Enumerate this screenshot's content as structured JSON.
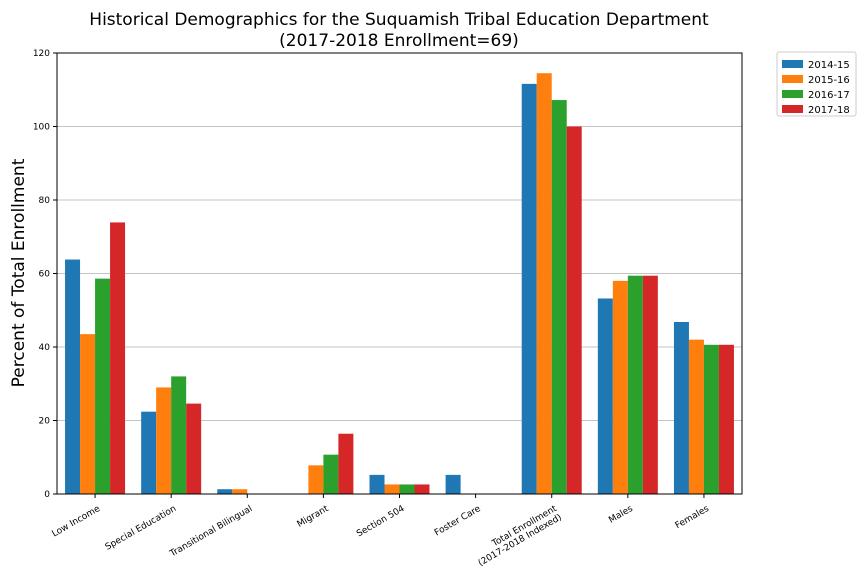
{
  "chart_data": {
    "type": "bar",
    "title": "Historical Demographics for the Suquamish Tribal Education Department",
    "subtitle": "(2017-2018 Enrollment=69)",
    "xlabel": "",
    "ylabel": "Percent of Total Enrollment",
    "ylim": [
      0,
      120
    ],
    "yticks": [
      "0",
      "20",
      "40",
      "60",
      "80",
      "100",
      "120"
    ],
    "grid": "horizontal",
    "legend_position": "outside-top-right",
    "categories": [
      [
        "Low Income"
      ],
      [
        "Special Education"
      ],
      [
        "Transitional Bilingual"
      ],
      [
        "Migrant"
      ],
      [
        "Section 504"
      ],
      [
        "Foster Care"
      ],
      [
        "Total Enrollment",
        "(2017-2018 Indexed)"
      ],
      [
        "Males"
      ],
      [
        "Females"
      ]
    ],
    "series": [
      {
        "name": "2014-15",
        "color": "#1f77b4",
        "values": [
          63.8,
          22.4,
          1.3,
          0,
          5.2,
          5.2,
          111.6,
          53.2,
          46.8
        ]
      },
      {
        "name": "2015-16",
        "color": "#ff7f0e",
        "values": [
          43.5,
          29.0,
          1.3,
          7.8,
          2.6,
          0,
          114.5,
          58.0,
          42.0
        ]
      },
      {
        "name": "2016-17",
        "color": "#2ca02c",
        "values": [
          58.6,
          32.0,
          0,
          10.7,
          2.6,
          0,
          107.2,
          59.4,
          40.6
        ]
      },
      {
        "name": "2017-18",
        "color": "#d62728",
        "values": [
          73.9,
          24.6,
          0,
          16.4,
          2.6,
          0,
          100.0,
          59.4,
          40.6
        ]
      }
    ]
  }
}
